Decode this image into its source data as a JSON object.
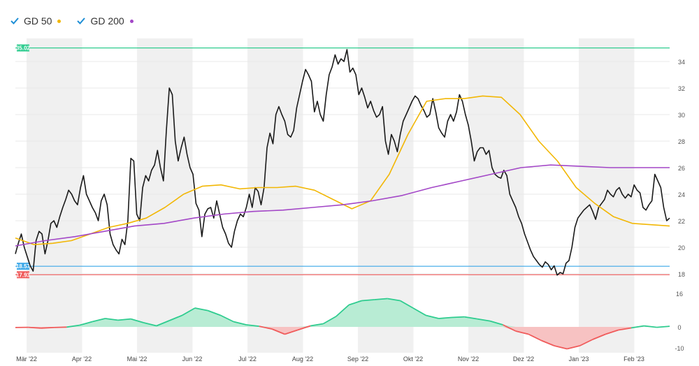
{
  "legend": {
    "items": [
      {
        "label": "GD 50",
        "color": "#f2b705"
      },
      {
        "label": "GD 200",
        "color": "#a347c7"
      }
    ]
  },
  "colors": {
    "price": "#1a1a1a",
    "band": "#f0f0f0",
    "resistance": "#2ecc8f",
    "support": "#3aa7e8",
    "stop": "#f05b5b",
    "positive_fill": "#b8ecd4",
    "negative_fill": "#f7c2c2"
  },
  "chart_data": {
    "type": "line",
    "title": "",
    "x_ticks": [
      "Mär '22",
      "Apr '22",
      "Mai '22",
      "Jun '22",
      "Jul '22",
      "Aug '22",
      "Sep '22",
      "Okt '22",
      "Nov '22",
      "Dez '22",
      "Jan '23",
      "Feb '23"
    ],
    "y_ticks": [
      "34",
      "32",
      "30",
      "28",
      "26",
      "24",
      "22",
      "20",
      "18"
    ],
    "ylim": [
      16.5,
      35.8
    ],
    "levels": [
      {
        "label": "35.02",
        "value": 35.02,
        "kind": "resistance"
      },
      {
        "label": "18.57",
        "value": 18.57,
        "kind": "support"
      },
      {
        "label": "17.93",
        "value": 17.93,
        "kind": "stop"
      }
    ],
    "series": [
      {
        "name": "",
        "values": [
          19.5,
          20.3,
          21.0,
          20.0,
          19.3,
          18.6,
          18.2,
          20.5,
          21.2,
          21.0,
          19.5,
          20.5,
          21.8,
          22.0,
          21.5,
          22.3,
          23.0,
          23.6,
          24.3,
          24.0,
          23.5,
          23.2,
          24.5,
          25.4,
          24.0,
          23.5,
          23.0,
          22.6,
          22.0,
          23.5,
          24.0,
          23.2,
          21.0,
          20.2,
          19.8,
          19.5,
          20.6,
          20.2,
          22.0,
          26.7,
          26.5,
          22.5,
          22.0,
          24.5,
          25.4,
          25.0,
          25.8,
          26.2,
          27.3,
          26.0,
          25.0,
          28.8,
          32.0,
          31.5,
          28.0,
          26.5,
          27.5,
          28.3,
          27.0,
          26.0,
          25.5,
          23.3,
          22.8,
          20.8,
          22.5,
          22.9,
          23.0,
          22.2,
          23.5,
          22.5,
          21.5,
          21.0,
          20.3,
          20.0,
          21.2,
          22.0,
          22.5,
          22.3,
          23.0,
          24.0,
          23.0,
          24.5,
          24.2,
          23.2,
          24.5,
          27.5,
          28.6,
          27.8,
          30.0,
          30.6,
          30.0,
          29.5,
          28.5,
          28.3,
          28.8,
          30.5,
          31.5,
          32.5,
          33.4,
          33.0,
          32.5,
          30.2,
          31.0,
          30.0,
          29.5,
          31.5,
          33.0,
          33.6,
          34.5,
          33.8,
          34.2,
          34.0,
          34.9,
          33.2,
          33.5,
          33.0,
          31.5,
          32.0,
          31.3,
          30.5,
          31.0,
          30.3,
          29.8,
          30.0,
          30.6,
          28.0,
          27.0,
          28.5,
          28.0,
          27.2,
          28.5,
          29.5,
          30.0,
          30.5,
          31.0,
          31.4,
          31.2,
          30.7,
          30.3,
          29.8,
          30.0,
          31.2,
          30.2,
          29.0,
          28.6,
          28.3,
          29.5,
          30.0,
          29.5,
          30.2,
          31.5,
          31.0,
          30.0,
          29.2,
          28.0,
          26.5,
          27.2,
          27.5,
          27.5,
          27.0,
          27.3,
          26.0,
          25.5,
          25.3,
          25.2,
          25.8,
          25.4,
          24.0,
          23.5,
          23.0,
          22.3,
          21.8,
          21.0,
          20.4,
          19.8,
          19.3,
          19.0,
          18.7,
          18.5,
          18.9,
          18.7,
          18.3,
          18.6,
          17.9,
          18.1,
          18.0,
          18.8,
          19.0,
          20.0,
          21.5,
          22.2,
          22.5,
          22.8,
          23.0,
          23.2,
          22.7,
          22.1,
          23.0,
          23.3,
          23.6,
          24.3,
          24.0,
          23.8,
          24.3,
          24.5,
          24.0,
          23.7,
          24.0,
          23.8,
          24.7,
          24.3,
          24.1,
          23.0,
          22.8,
          23.2,
          23.5,
          25.5,
          25.0,
          24.5,
          23.0,
          22.0,
          22.2
        ]
      },
      {
        "name": "GD 50",
        "values": [
          20.7,
          20.2,
          20.3,
          20.5,
          21.0,
          21.5,
          21.8,
          22.2,
          23.0,
          24.0,
          24.6,
          24.7,
          24.4,
          24.5,
          24.5,
          24.6,
          24.3,
          23.6,
          22.9,
          23.5,
          25.5,
          28.5,
          31.0,
          31.2,
          31.2,
          31.4,
          31.3,
          30.0,
          28.0,
          26.5,
          24.5,
          23.3,
          22.3,
          21.8,
          21.7,
          21.6
        ]
      },
      {
        "name": "GD 200",
        "values": [
          20.1,
          20.5,
          20.8,
          21.2,
          21.6,
          21.8,
          22.2,
          22.5,
          22.7,
          22.8,
          23.0,
          23.2,
          23.5,
          23.9,
          24.5,
          25.0,
          25.5,
          26.0,
          26.2,
          26.1,
          26.0,
          26.0,
          26.0
        ]
      }
    ],
    "oscillator": {
      "y_ticks": [
        "16",
        "0",
        "-10"
      ],
      "ylim": [
        -12,
        18
      ],
      "values": [
        -0.3,
        -0.2,
        -0.6,
        -0.3,
        -0.1,
        0.8,
        2.5,
        4.0,
        3.2,
        3.8,
        2.0,
        0.5,
        3.0,
        5.5,
        9.0,
        7.8,
        5.5,
        2.5,
        1.0,
        0.3,
        -1.0,
        -3.5,
        -1.5,
        0.5,
        1.5,
        5.0,
        10.5,
        12.5,
        13.0,
        13.5,
        12.5,
        9.0,
        5.5,
        4.0,
        4.5,
        4.8,
        3.8,
        2.8,
        1.0,
        -2.0,
        -3.5,
        -6.5,
        -9.0,
        -10.5,
        -9.0,
        -6.0,
        -3.5,
        -1.5,
        -0.5,
        0.5,
        -0.2,
        0.3
      ]
    }
  }
}
